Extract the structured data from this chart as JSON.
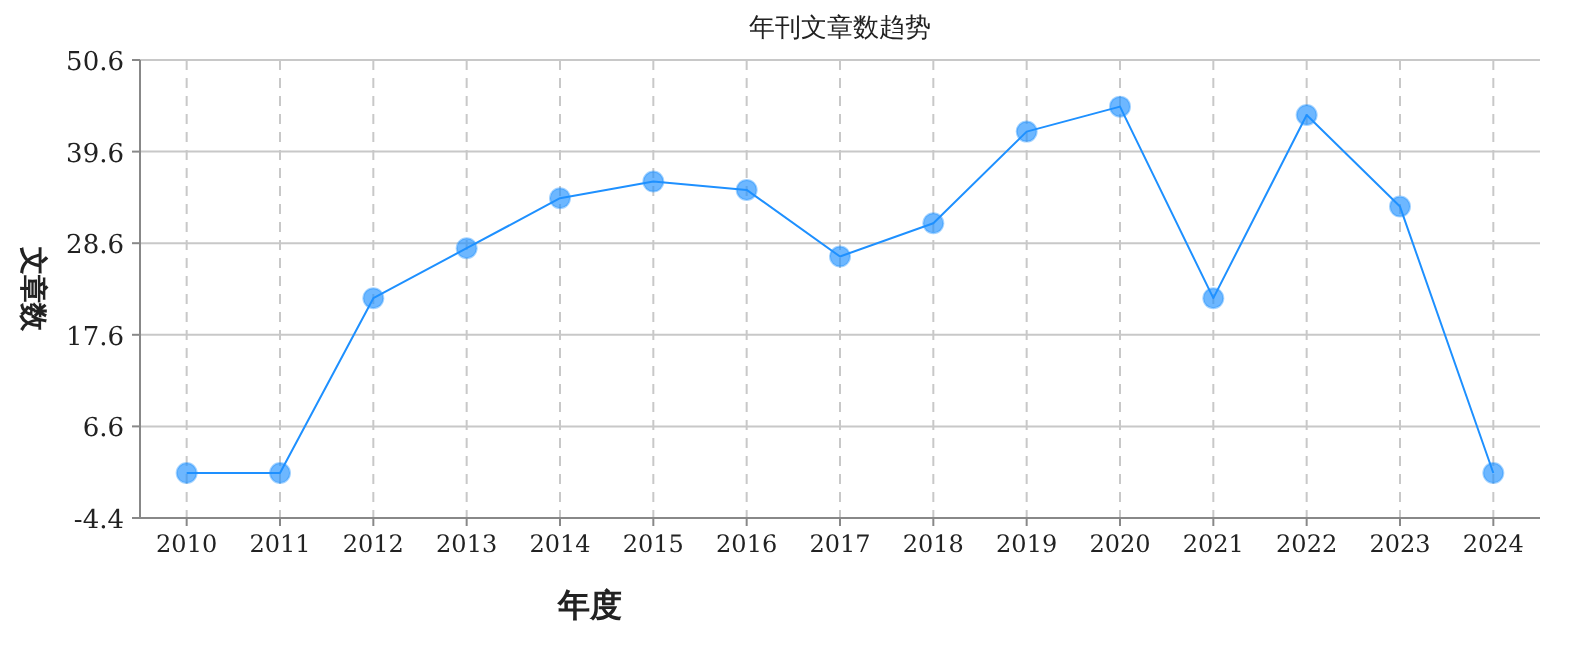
{
  "chart_data": {
    "type": "line",
    "title": "年刊文章数趋势",
    "xlabel": "年度",
    "ylabel": "文章数",
    "categories": [
      "2010",
      "2011",
      "2012",
      "2013",
      "2014",
      "2015",
      "2016",
      "2017",
      "2018",
      "2019",
      "2020",
      "2021",
      "2022",
      "2023",
      "2024"
    ],
    "series": [
      {
        "color": "#1e90ff",
        "values": [
          1,
          1,
          22,
          28,
          34,
          36,
          35,
          27,
          31,
          42,
          45,
          22,
          44,
          33,
          1
        ]
      }
    ],
    "ylim": [
      -4.4,
      50.6
    ],
    "yticks": [
      -4.4,
      6.6,
      17.6,
      28.6,
      39.6,
      50.6
    ],
    "grid": true,
    "marker": "circle",
    "line_style": "solid"
  }
}
